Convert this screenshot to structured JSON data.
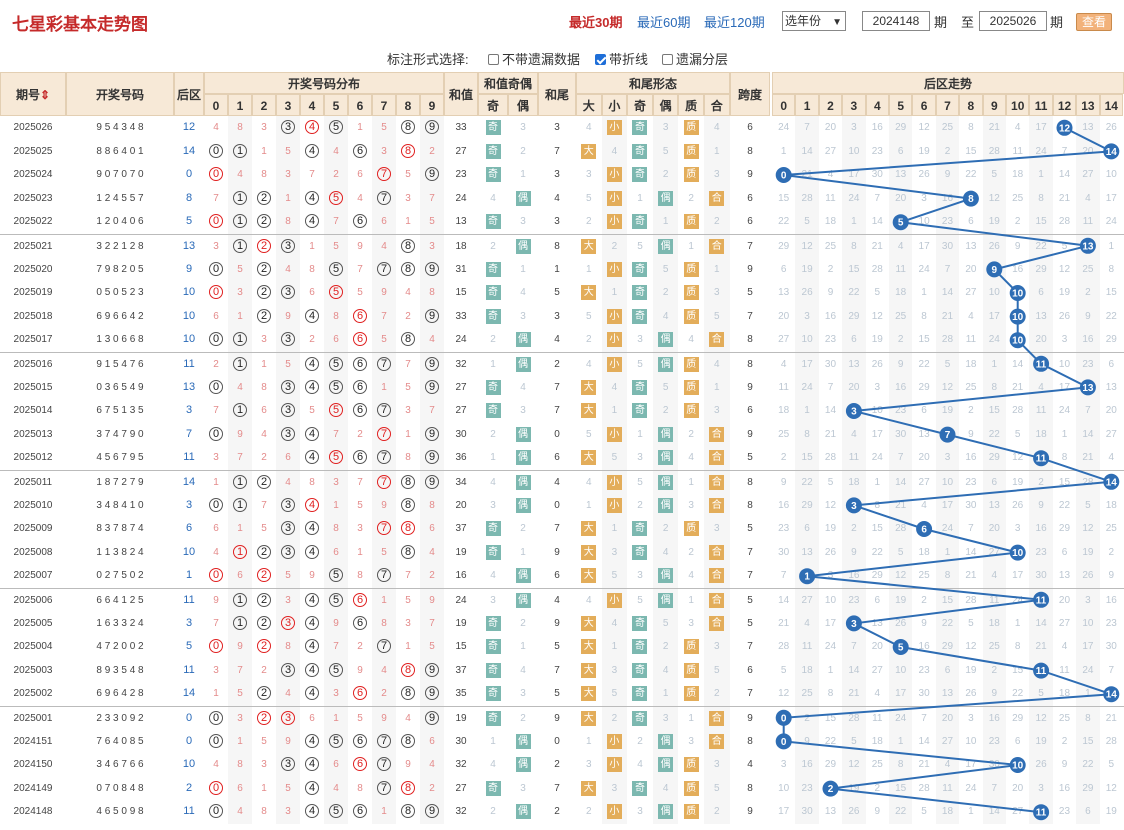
{
  "title": "七星彩基本走势图",
  "period_buttons": [
    "最近30期",
    "最近60期",
    "最近120期"
  ],
  "year_select": "选年份",
  "from_value": "2024148",
  "to_value": "2025026",
  "qi_label": "期",
  "zhi_label": "至",
  "view_button": "查看",
  "options": {
    "label": "标注形式选择:",
    "items": [
      {
        "label": "不带遗漏数据",
        "checked": false
      },
      {
        "label": "带折线",
        "checked": true
      },
      {
        "label": "遗漏分层",
        "checked": false
      }
    ]
  },
  "headers": {
    "period": "期号",
    "sort_icon": "sort-icon",
    "numbers": "开奖号码",
    "back": "后区",
    "dist": "开奖号码分布",
    "sum": "和值",
    "sumoe": "和值奇偶",
    "odd": "奇",
    "even": "偶",
    "tail": "和尾",
    "tailform": "和尾形态",
    "big": "大",
    "small": "小",
    "tji": "奇",
    "tou": "偶",
    "zhi": "质",
    "he": "合",
    "span": "跨度",
    "backtrend": "后区走势",
    "dist_digits": [
      "0",
      "1",
      "2",
      "3",
      "4",
      "5",
      "6",
      "7",
      "8",
      "9"
    ],
    "back_digits": [
      "0",
      "1",
      "2",
      "3",
      "4",
      "5",
      "6",
      "7",
      "8",
      "9",
      "10",
      "11",
      "12",
      "13",
      "14"
    ]
  },
  "rows": [
    {
      "p": "2025026",
      "nums": "954348",
      "b": "12",
      "sum": "33",
      "oe": "奇",
      "tail": "3",
      "bs": "小",
      "to": "奇",
      "pc": "质",
      "span": "6"
    },
    {
      "p": "2025025",
      "nums": "886401",
      "b": "14",
      "sum": "27",
      "oe": "奇",
      "tail": "7",
      "bs": "大",
      "to": "奇",
      "pc": "质",
      "span": "8"
    },
    {
      "p": "2025024",
      "nums": "907070",
      "b": "0",
      "sum": "23",
      "oe": "奇",
      "tail": "3",
      "bs": "小",
      "to": "奇",
      "pc": "质",
      "span": "9"
    },
    {
      "p": "2025023",
      "nums": "124557",
      "b": "8",
      "sum": "24",
      "oe": "偶",
      "tail": "4",
      "bs": "小",
      "to": "偶",
      "pc": "合",
      "span": "6"
    },
    {
      "p": "2025022",
      "nums": "120406",
      "b": "5",
      "sum": "13",
      "oe": "奇",
      "tail": "3",
      "bs": "小",
      "to": "奇",
      "pc": "质",
      "span": "6"
    },
    {
      "p": "2025021",
      "nums": "322128",
      "b": "13",
      "sum": "18",
      "oe": "偶",
      "tail": "8",
      "bs": "大",
      "to": "偶",
      "pc": "合",
      "span": "7"
    },
    {
      "p": "2025020",
      "nums": "798205",
      "b": "9",
      "sum": "31",
      "oe": "奇",
      "tail": "1",
      "bs": "小",
      "to": "奇",
      "pc": "质",
      "span": "9"
    },
    {
      "p": "2025019",
      "nums": "050523",
      "b": "10",
      "sum": "15",
      "oe": "奇",
      "tail": "5",
      "bs": "大",
      "to": "奇",
      "pc": "质",
      "span": "5"
    },
    {
      "p": "2025018",
      "nums": "696642",
      "b": "10",
      "sum": "33",
      "oe": "奇",
      "tail": "3",
      "bs": "小",
      "to": "奇",
      "pc": "质",
      "span": "7"
    },
    {
      "p": "2025017",
      "nums": "130668",
      "b": "10",
      "sum": "24",
      "oe": "偶",
      "tail": "4",
      "bs": "小",
      "to": "偶",
      "pc": "合",
      "span": "8"
    },
    {
      "p": "2025016",
      "nums": "915476",
      "b": "11",
      "sum": "32",
      "oe": "偶",
      "tail": "2",
      "bs": "小",
      "to": "偶",
      "pc": "质",
      "span": "8"
    },
    {
      "p": "2025015",
      "nums": "036549",
      "b": "13",
      "sum": "27",
      "oe": "奇",
      "tail": "7",
      "bs": "大",
      "to": "奇",
      "pc": "质",
      "span": "9"
    },
    {
      "p": "2025014",
      "nums": "675135",
      "b": "3",
      "sum": "27",
      "oe": "奇",
      "tail": "7",
      "bs": "大",
      "to": "奇",
      "pc": "质",
      "span": "6"
    },
    {
      "p": "2025013",
      "nums": "374790",
      "b": "7",
      "sum": "30",
      "oe": "偶",
      "tail": "0",
      "bs": "小",
      "to": "偶",
      "pc": "合",
      "span": "9"
    },
    {
      "p": "2025012",
      "nums": "456795",
      "b": "11",
      "sum": "36",
      "oe": "偶",
      "tail": "6",
      "bs": "大",
      "to": "偶",
      "pc": "合",
      "span": "5"
    },
    {
      "p": "2025011",
      "nums": "187279",
      "b": "14",
      "sum": "34",
      "oe": "偶",
      "tail": "4",
      "bs": "小",
      "to": "偶",
      "pc": "合",
      "span": "8"
    },
    {
      "p": "2025010",
      "nums": "348410",
      "b": "3",
      "sum": "20",
      "oe": "偶",
      "tail": "0",
      "bs": "小",
      "to": "偶",
      "pc": "合",
      "span": "8"
    },
    {
      "p": "2025009",
      "nums": "837874",
      "b": "6",
      "sum": "37",
      "oe": "奇",
      "tail": "7",
      "bs": "大",
      "to": "奇",
      "pc": "质",
      "span": "5"
    },
    {
      "p": "2025008",
      "nums": "113824",
      "b": "10",
      "sum": "19",
      "oe": "奇",
      "tail": "9",
      "bs": "大",
      "to": "奇",
      "pc": "合",
      "span": "7"
    },
    {
      "p": "2025007",
      "nums": "027502",
      "b": "1",
      "sum": "16",
      "oe": "偶",
      "tail": "6",
      "bs": "大",
      "to": "偶",
      "pc": "合",
      "span": "7"
    },
    {
      "p": "2025006",
      "nums": "664125",
      "b": "11",
      "sum": "24",
      "oe": "偶",
      "tail": "4",
      "bs": "小",
      "to": "偶",
      "pc": "合",
      "span": "5"
    },
    {
      "p": "2025005",
      "nums": "163324",
      "b": "3",
      "sum": "19",
      "oe": "奇",
      "tail": "9",
      "bs": "大",
      "to": "奇",
      "pc": "合",
      "span": "5"
    },
    {
      "p": "2025004",
      "nums": "472002",
      "b": "5",
      "sum": "15",
      "oe": "奇",
      "tail": "5",
      "bs": "大",
      "to": "奇",
      "pc": "质",
      "span": "7"
    },
    {
      "p": "2025003",
      "nums": "893548",
      "b": "11",
      "sum": "37",
      "oe": "奇",
      "tail": "7",
      "bs": "大",
      "to": "奇",
      "pc": "质",
      "span": "6"
    },
    {
      "p": "2025002",
      "nums": "696428",
      "b": "14",
      "sum": "35",
      "oe": "奇",
      "tail": "5",
      "bs": "大",
      "to": "奇",
      "pc": "质",
      "span": "7"
    },
    {
      "p": "2025001",
      "nums": "233092",
      "b": "0",
      "sum": "19",
      "oe": "奇",
      "tail": "9",
      "bs": "大",
      "to": "奇",
      "pc": "合",
      "span": "9"
    },
    {
      "p": "2024151",
      "nums": "764085",
      "b": "0",
      "sum": "30",
      "oe": "偶",
      "tail": "0",
      "bs": "小",
      "to": "偶",
      "pc": "合",
      "span": "8"
    },
    {
      "p": "2024150",
      "nums": "346766",
      "b": "10",
      "sum": "32",
      "oe": "偶",
      "tail": "2",
      "bs": "小",
      "to": "偶",
      "pc": "质",
      "span": "4"
    },
    {
      "p": "2024149",
      "nums": "070848",
      "b": "2",
      "sum": "27",
      "oe": "奇",
      "tail": "7",
      "bs": "大",
      "to": "奇",
      "pc": "质",
      "span": "8"
    },
    {
      "p": "2024148",
      "nums": "465098",
      "b": "11",
      "sum": "32",
      "oe": "偶",
      "tail": "2",
      "bs": "小",
      "to": "偶",
      "pc": "质",
      "span": "9"
    }
  ],
  "colors": {
    "header_bg": "#f7e9d7",
    "line": "#2e6db4",
    "red": "#e02020",
    "orange_tag": "#e3ad5a",
    "teal_tag": "#7cb8b0"
  }
}
